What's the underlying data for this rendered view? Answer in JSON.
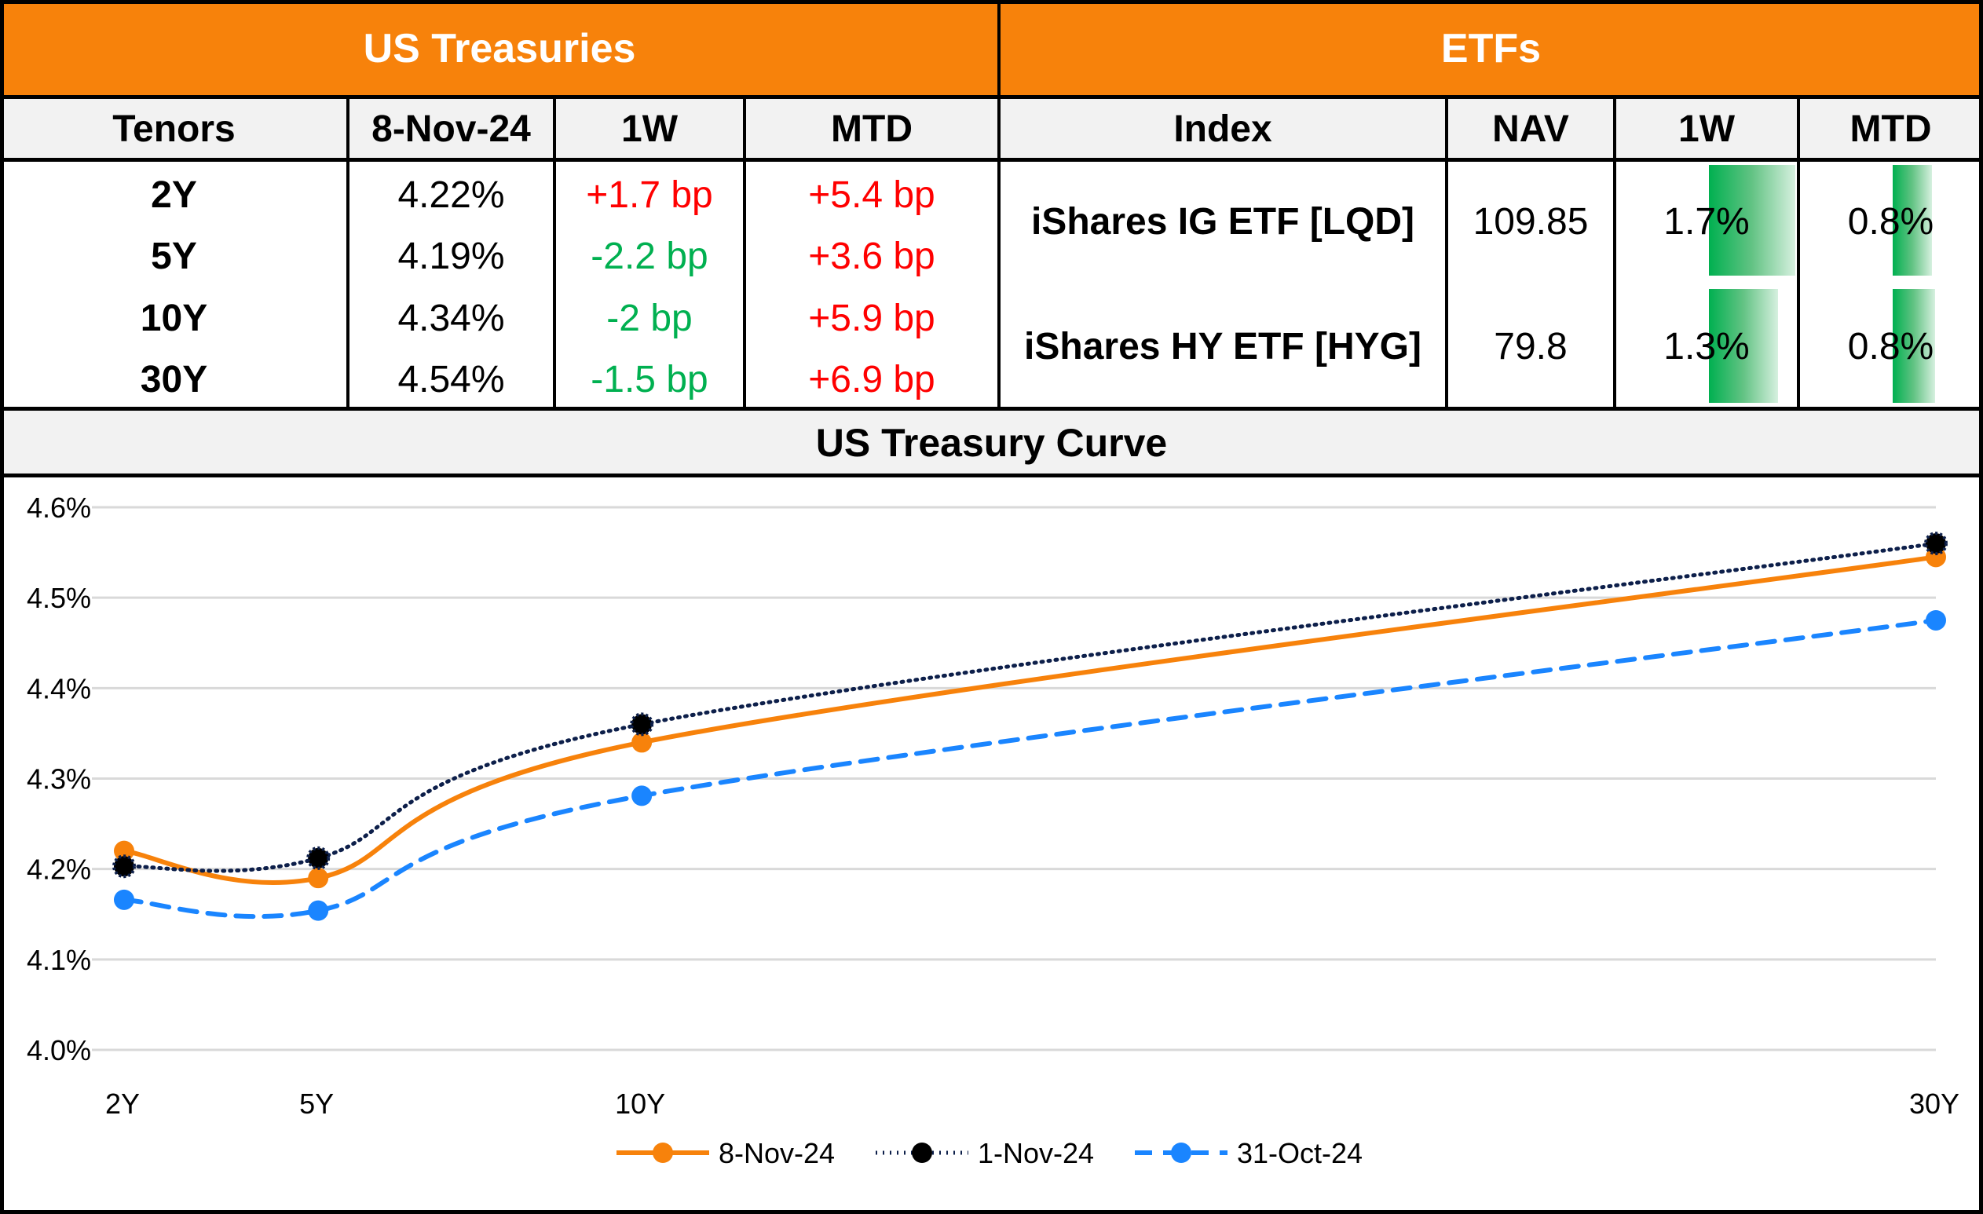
{
  "header": {
    "treasuries_title": "US Treasuries",
    "etfs_title": "ETFs"
  },
  "treasuries": {
    "columns": [
      "Tenors",
      "8-Nov-24",
      "1W",
      "MTD"
    ],
    "rows": [
      {
        "tenor": "2Y",
        "yield": "4.22%",
        "w1": "+1.7 bp",
        "mtd": "+5.4 bp",
        "w1_dir": "pos",
        "mtd_dir": "pos"
      },
      {
        "tenor": "5Y",
        "yield": "4.19%",
        "w1": "-2.2 bp",
        "mtd": "+3.6 bp",
        "w1_dir": "neg",
        "mtd_dir": "pos"
      },
      {
        "tenor": "10Y",
        "yield": "4.34%",
        "w1": "-2 bp",
        "mtd": "+5.9 bp",
        "w1_dir": "neg",
        "mtd_dir": "pos"
      },
      {
        "tenor": "30Y",
        "yield": "4.54%",
        "w1": "-1.5 bp",
        "mtd": "+6.9 bp",
        "w1_dir": "neg",
        "mtd_dir": "pos"
      }
    ]
  },
  "etfs": {
    "columns": [
      "Index",
      "NAV",
      "1W",
      "MTD"
    ],
    "rows": [
      {
        "name": "iShares IG ETF [LQD]",
        "nav": "109.85",
        "w1": "1.7%",
        "mtd": "0.8%",
        "w1_value": 1.7,
        "mtd_value": 0.8
      },
      {
        "name": "iShares HY ETF [HYG]",
        "nav": "79.8",
        "w1": "1.3%",
        "mtd": "0.8%",
        "w1_value": 1.3,
        "mtd_value": 0.8
      }
    ]
  },
  "colors": {
    "header_orange": "#F7820B",
    "positive_red": "#FF0000",
    "negative_green": "#00B050",
    "databar_green": "#00B050"
  },
  "chart_data": {
    "type": "line",
    "title": "US Treasury Curve",
    "xlabel": "",
    "ylabel": "",
    "x": [
      2,
      5,
      10,
      30
    ],
    "x_tick_labels": [
      "2Y",
      "5Y",
      "10Y",
      "30Y"
    ],
    "x_range": [
      2,
      30
    ],
    "ylim": [
      4.0,
      4.6
    ],
    "y_ticks": [
      4.0,
      4.1,
      4.2,
      4.3,
      4.4,
      4.5,
      4.6
    ],
    "y_tick_labels": [
      "4.0%",
      "4.1%",
      "4.2%",
      "4.3%",
      "4.4%",
      "4.5%",
      "4.6%"
    ],
    "grid": true,
    "legend_position": "bottom",
    "smooth": true,
    "series": [
      {
        "name": "8-Nov-24",
        "values": [
          4.22,
          4.19,
          4.34,
          4.545
        ],
        "color": "#F7820B",
        "style": "solid",
        "marker": "circle"
      },
      {
        "name": "1-Nov-24",
        "values": [
          4.203,
          4.212,
          4.36,
          4.56
        ],
        "color": "#0D1F4A",
        "style": "dotted",
        "marker": "circle"
      },
      {
        "name": "31-Oct-24",
        "values": [
          4.166,
          4.154,
          4.281,
          4.475
        ],
        "color": "#1A85FF",
        "style": "dashed",
        "marker": "circle"
      }
    ]
  }
}
